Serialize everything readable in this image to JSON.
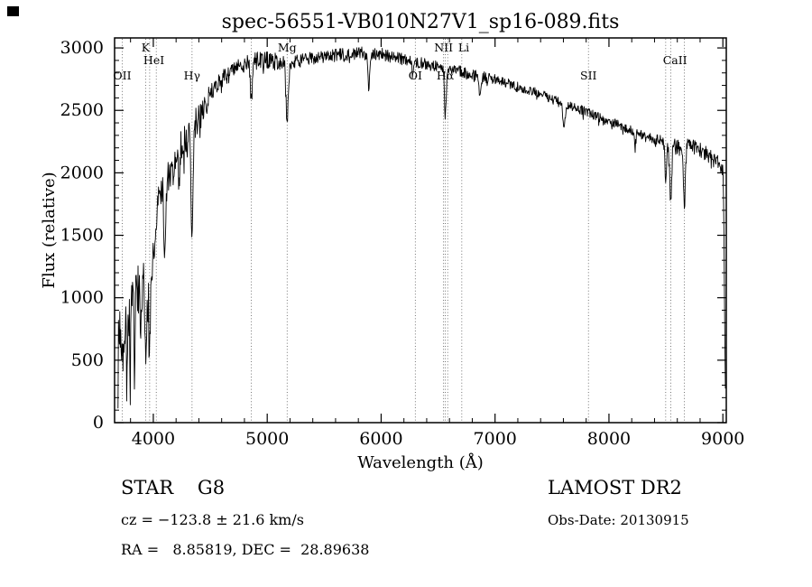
{
  "figure": {
    "background": "#ffffff",
    "foreground": "#000000"
  },
  "chart_data": {
    "type": "line",
    "title": "spec-56551-VB010N27V1_sp16-089.fits",
    "xlabel": "Wavelength (Å)",
    "ylabel": "Flux (relative)",
    "x_range": [
      3660,
      9030
    ],
    "y_range": [
      0,
      3080
    ],
    "x_data_range": [
      3690,
      9025
    ],
    "x_ticks": [
      4000,
      5000,
      6000,
      7000,
      8000,
      9000
    ],
    "y_ticks": [
      0,
      500,
      1000,
      1500,
      2000,
      2500,
      3000
    ],
    "x_minor_step": 200,
    "y_minor_step": 100,
    "series_name": "spectrum",
    "envelope": [
      [
        3690,
        700
      ],
      [
        3720,
        850
      ],
      [
        3760,
        950
      ],
      [
        3800,
        880
      ],
      [
        3850,
        1040
      ],
      [
        3900,
        1020
      ],
      [
        3950,
        1120
      ],
      [
        4000,
        1280
      ],
      [
        4040,
        1750
      ],
      [
        4100,
        2000
      ],
      [
        4150,
        1950
      ],
      [
        4200,
        2080
      ],
      [
        4250,
        2230
      ],
      [
        4300,
        2300
      ],
      [
        4350,
        2360
      ],
      [
        4400,
        2450
      ],
      [
        4450,
        2560
      ],
      [
        4500,
        2650
      ],
      [
        4600,
        2750
      ],
      [
        4700,
        2810
      ],
      [
        4800,
        2870
      ],
      [
        4900,
        2900
      ],
      [
        5000,
        2905
      ],
      [
        5100,
        2885
      ],
      [
        5200,
        2880
      ],
      [
        5300,
        2900
      ],
      [
        5400,
        2920
      ],
      [
        5500,
        2930
      ],
      [
        5600,
        2940
      ],
      [
        5700,
        2950
      ],
      [
        5800,
        2960
      ],
      [
        5900,
        2950
      ],
      [
        6000,
        2955
      ],
      [
        6100,
        2930
      ],
      [
        6200,
        2910
      ],
      [
        6300,
        2890
      ],
      [
        6400,
        2870
      ],
      [
        6500,
        2850
      ],
      [
        6600,
        2830
      ],
      [
        6700,
        2810
      ],
      [
        6800,
        2790
      ],
      [
        6900,
        2770
      ],
      [
        7000,
        2750
      ],
      [
        7100,
        2720
      ],
      [
        7200,
        2690
      ],
      [
        7300,
        2660
      ],
      [
        7400,
        2630
      ],
      [
        7500,
        2590
      ],
      [
        7600,
        2550
      ],
      [
        7700,
        2520
      ],
      [
        7800,
        2490
      ],
      [
        7900,
        2450
      ],
      [
        8000,
        2420
      ],
      [
        8100,
        2380
      ],
      [
        8200,
        2340
      ],
      [
        8300,
        2300
      ],
      [
        8400,
        2270
      ],
      [
        8500,
        2240
      ],
      [
        8600,
        2210
      ],
      [
        8700,
        2230
      ],
      [
        8800,
        2180
      ],
      [
        8900,
        2130
      ],
      [
        8950,
        2090
      ],
      [
        9000,
        2010
      ],
      [
        9008,
        1700
      ],
      [
        9015,
        900
      ],
      [
        9022,
        250
      ],
      [
        9025,
        120
      ]
    ],
    "absorption_lines": [
      {
        "wavelength": 3727,
        "depth": 480,
        "sigma": 7
      },
      {
        "wavelength": 3750,
        "depth": 380,
        "sigma": 5
      },
      {
        "wavelength": 3771,
        "depth": 420,
        "sigma": 5
      },
      {
        "wavelength": 3798,
        "depth": 420,
        "sigma": 5
      },
      {
        "wavelength": 3835,
        "depth": 480,
        "sigma": 6
      },
      {
        "wavelength": 3889,
        "depth": 520,
        "sigma": 6
      },
      {
        "wavelength": 3933,
        "depth": 650,
        "sigma": 7
      },
      {
        "wavelength": 3968,
        "depth": 600,
        "sigma": 7
      },
      {
        "wavelength": 4101,
        "depth": 680,
        "sigma": 9
      },
      {
        "wavelength": 4227,
        "depth": 260,
        "sigma": 5
      },
      {
        "wavelength": 4340,
        "depth": 880,
        "sigma": 9
      },
      {
        "wavelength": 4471,
        "depth": 160,
        "sigma": 6
      },
      {
        "wavelength": 4861,
        "depth": 340,
        "sigma": 8
      },
      {
        "wavelength": 5175,
        "depth": 470,
        "sigma": 10
      },
      {
        "wavelength": 5893,
        "depth": 270,
        "sigma": 7
      },
      {
        "wavelength": 6277,
        "depth": 120,
        "sigma": 6
      },
      {
        "wavelength": 6563,
        "depth": 380,
        "sigma": 8
      },
      {
        "wavelength": 6870,
        "depth": 150,
        "sigma": 8
      },
      {
        "wavelength": 7605,
        "depth": 190,
        "sigma": 10
      },
      {
        "wavelength": 8228,
        "depth": 120,
        "sigma": 6
      },
      {
        "wavelength": 8498,
        "depth": 300,
        "sigma": 7
      },
      {
        "wavelength": 8542,
        "depth": 470,
        "sigma": 8
      },
      {
        "wavelength": 8662,
        "depth": 470,
        "sigma": 8
      }
    ],
    "noise_regions": [
      {
        "from": 3660,
        "to": 4000,
        "amp": 250,
        "spike": 350
      },
      {
        "from": 4000,
        "to": 4450,
        "amp": 130,
        "spike": 150
      },
      {
        "from": 4450,
        "to": 5200,
        "amp": 70,
        "spike": 60
      },
      {
        "from": 5200,
        "to": 6100,
        "amp": 52,
        "spike": 40
      },
      {
        "from": 6100,
        "to": 7000,
        "amp": 45,
        "spike": 40
      },
      {
        "from": 7000,
        "to": 8400,
        "amp": 38,
        "spike": 40
      },
      {
        "from": 8400,
        "to": 9030,
        "amp": 60,
        "spike": 80
      }
    ],
    "noise_seed": 7,
    "spike_prob": 0.1,
    "sample_step": 4,
    "marker_lines": [
      3727,
      3933,
      3968,
      4026,
      4340,
      4861,
      5175,
      6300,
      6548,
      6563,
      6584,
      6708,
      7820,
      8498,
      8542,
      8662
    ],
    "line_labels": [
      {
        "text": "OII",
        "wavelength": 3727,
        "row": 3
      },
      {
        "text": "K",
        "wavelength": 3933,
        "row": 1
      },
      {
        "text": "HeI",
        "wavelength": 4005,
        "row": 2
      },
      {
        "text": "Hγ",
        "wavelength": 4340,
        "row": 3
      },
      {
        "text": "Mg",
        "wavelength": 5175,
        "row": 1
      },
      {
        "text": "OI",
        "wavelength": 6300,
        "row": 3
      },
      {
        "text": "NII",
        "wavelength": 6548,
        "row": 1
      },
      {
        "text": "Hα",
        "wavelength": 6563,
        "row": 3
      },
      {
        "text": "Li",
        "wavelength": 6725,
        "row": 1
      },
      {
        "text": "SII",
        "wavelength": 7820,
        "row": 3
      },
      {
        "text": "CaII",
        "wavelength": 8580,
        "row": 2
      }
    ]
  },
  "footer": {
    "class_label": "STAR    G8",
    "survey_label": "LAMOST DR2",
    "cz_label": "cz = −123.8 ± 21.6 km/s",
    "obs_date_label": "Obs-Date: 20130915",
    "ra_dec_label": "RA =   8.85819, DEC =  28.89638"
  }
}
